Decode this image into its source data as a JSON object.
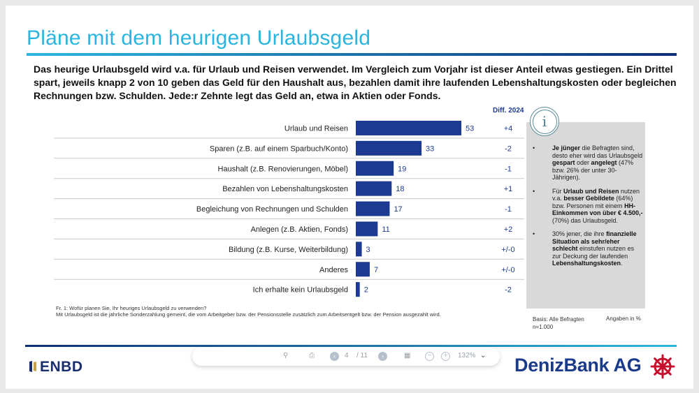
{
  "slide": {
    "title": "Pläne mit dem heurigen Urlaubsgeld",
    "subtitle": "Das heurige Urlaubsgeld wird v.a. für Urlaub und Reisen verwendet. Im Vergleich zum Vorjahr ist dieser Anteil etwas gestiegen. Ein Drittel spart, jeweils knapp 2 von 10 geben das Geld für den Haushalt aus, bezahlen damit ihre laufenden Lebenshaltungskosten oder begleichen Rechnungen bzw. Schulden. Jede:r Zehnte legt das Geld an, etwa in Aktien oder Fonds.",
    "diff_header": "Diff. 2024"
  },
  "chart_data": {
    "type": "bar",
    "orientation": "horizontal",
    "categories": [
      "Urlaub und Reisen",
      "Sparen (z.B. auf einem Sparbuch/Konto)",
      "Haushalt (z.B. Renovierungen, Möbel)",
      "Bezahlen von Lebenshaltungskosten",
      "Begleichung von Rechnungen und Schulden",
      "Anlegen (z.B. Aktien, Fonds)",
      "Bildung (z.B. Kurse, Weiterbildung)",
      "Anderes",
      "Ich erhalte kein Urlaubsgeld"
    ],
    "values": [
      53,
      33,
      19,
      18,
      17,
      11,
      3,
      7,
      2
    ],
    "diff_2024": [
      "+4",
      "-2",
      "-1",
      "+1",
      "-1",
      "+2",
      "+/-0",
      "+/-0",
      "-2"
    ],
    "xlim": [
      0,
      100
    ],
    "bar_color": "#1c3a92",
    "label_color": "#1c3a92",
    "grid": false
  },
  "info": {
    "icon": "info-icon",
    "bullet": "•",
    "bullets": [
      [
        {
          "t": "Je jünger",
          "b": true
        },
        {
          "t": " die Befragten sind, desto eher wird das Urlaubsgeld ",
          "b": false
        },
        {
          "t": "gespart",
          "b": true
        },
        {
          "t": " oder ",
          "b": false
        },
        {
          "t": "angelegt",
          "b": true
        },
        {
          "t": " (47% bzw. 26% der unter 30-Jährigen).",
          "b": false
        }
      ],
      [
        {
          "t": "Für ",
          "b": false
        },
        {
          "t": "Urlaub und Reisen",
          "b": true
        },
        {
          "t": " nutzen v.a. ",
          "b": false
        },
        {
          "t": "besser Gebildete",
          "b": true
        },
        {
          "t": " (64%) bzw. Personen mit einem ",
          "b": false
        },
        {
          "t": "HH-Einkommen von über € 4.500,-",
          "b": true
        },
        {
          "t": " (70%) das Urlaubsgeld.",
          "b": false
        }
      ],
      [
        {
          "t": "30% jener, die ihre ",
          "b": false
        },
        {
          "t": "finanzielle Situation als sehr/eher schlecht",
          "b": true
        },
        {
          "t": " einstufen nutzen es zur Deckung der laufenden ",
          "b": false
        },
        {
          "t": "Lebenshaltungskosten",
          "b": true
        },
        {
          "t": ".",
          "b": false
        }
      ]
    ]
  },
  "footer": {
    "question": "Fr. 1: Wofür planen Sie, Ihr heuriges Urlaubsgeld zu verwenden?",
    "note": "Mit Urlaubsgeld ist die jährliche Sonderzahlung gemeint, die vom Arbeitgeber bzw. der Pensionsstelle zusätzlich zum Arbeitsentgelt bzw. der Pension ausgezahlt wird.",
    "basis": "Basis: Alle Befragten",
    "n": "n=1.000",
    "units": "Angaben in %"
  },
  "viewer_toolbar": {
    "page_current": "4",
    "page_total": "/ 11",
    "zoom": "132%"
  },
  "logos": {
    "left": "ENBD",
    "right": "DenizBank AG"
  }
}
